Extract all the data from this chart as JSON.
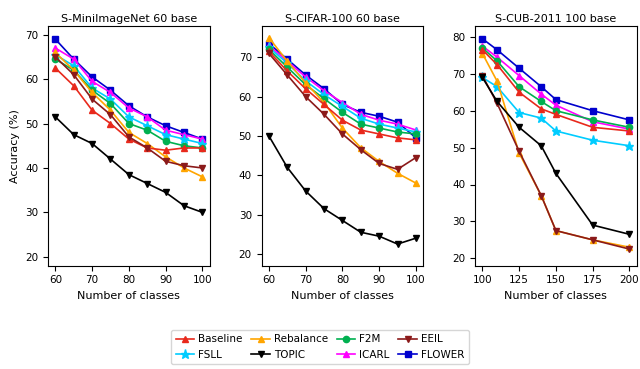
{
  "plot1": {
    "title": "S-MiniImageNet 60 base",
    "x": [
      60,
      65,
      70,
      75,
      80,
      85,
      90,
      95,
      100
    ],
    "xticks": [
      60,
      70,
      80,
      90,
      100
    ],
    "xlabel": "Number of classes",
    "ylabel": "Accuracy (%)",
    "ylim": [
      18,
      72
    ],
    "yticks": [
      20,
      30,
      40,
      50,
      60,
      70
    ],
    "series": {
      "Baseline": [
        62.5,
        58.5,
        53.0,
        50.0,
        46.5,
        44.5,
        44.0,
        44.5,
        44.5
      ],
      "F2M": [
        64.5,
        62.0,
        57.5,
        54.5,
        50.0,
        48.5,
        46.0,
        45.0,
        44.5
      ],
      "FSLL": [
        65.5,
        63.0,
        58.0,
        55.5,
        51.5,
        49.5,
        47.5,
        46.5,
        45.5
      ],
      "ICARL": [
        67.0,
        64.5,
        59.5,
        57.0,
        53.5,
        51.5,
        48.5,
        47.5,
        46.5
      ],
      "Rebalance": [
        66.0,
        62.0,
        57.0,
        53.0,
        48.0,
        45.5,
        42.5,
        40.0,
        38.0
      ],
      "EEIL": [
        65.0,
        61.0,
        55.5,
        52.0,
        47.0,
        44.5,
        41.5,
        40.5,
        40.0
      ],
      "TOPIC": [
        51.5,
        47.5,
        45.5,
        42.0,
        38.5,
        36.5,
        34.5,
        31.5,
        30.0
      ],
      "FLOWER": [
        69.0,
        64.5,
        60.5,
        57.5,
        54.0,
        51.5,
        49.5,
        48.0,
        46.5
      ]
    }
  },
  "plot2": {
    "title": "S-CIFAR-100 60 base",
    "x": [
      60,
      65,
      70,
      75,
      80,
      85,
      90,
      95,
      100
    ],
    "xticks": [
      60,
      70,
      80,
      90,
      100
    ],
    "xlabel": "Number of classes",
    "ylabel": "",
    "ylim": [
      17,
      78
    ],
    "yticks": [
      20,
      30,
      40,
      50,
      60,
      70
    ],
    "series": {
      "Baseline": [
        71.5,
        66.5,
        62.0,
        58.0,
        54.0,
        51.5,
        50.5,
        49.5,
        49.0
      ],
      "F2M": [
        72.0,
        67.5,
        63.0,
        59.5,
        56.0,
        53.0,
        52.0,
        51.0,
        50.5
      ],
      "FSLL": [
        72.5,
        68.5,
        64.0,
        60.5,
        57.5,
        54.5,
        53.0,
        52.0,
        51.0
      ],
      "ICARL": [
        73.0,
        69.0,
        65.0,
        61.5,
        58.5,
        55.5,
        54.0,
        53.0,
        51.5
      ],
      "Rebalance": [
        75.0,
        69.0,
        63.5,
        58.5,
        52.0,
        47.0,
        43.5,
        40.5,
        38.0
      ],
      "EEIL": [
        71.0,
        65.5,
        60.0,
        55.5,
        50.5,
        46.5,
        43.0,
        41.5,
        44.5
      ],
      "TOPIC": [
        50.0,
        42.0,
        36.0,
        31.5,
        28.5,
        25.5,
        24.5,
        22.5,
        24.0
      ],
      "FLOWER": [
        73.5,
        69.5,
        65.5,
        62.0,
        58.0,
        56.0,
        55.0,
        53.5,
        49.5
      ]
    }
  },
  "plot3": {
    "title": "S-CUB-2011 100 base",
    "x": [
      100,
      110,
      125,
      140,
      150,
      175,
      200
    ],
    "xticks": [
      100,
      125,
      150,
      175,
      200
    ],
    "xlabel": "Number of classes",
    "ylabel": "",
    "ylim": [
      18,
      83
    ],
    "yticks": [
      20,
      30,
      40,
      50,
      60,
      70,
      80
    ],
    "series": {
      "Baseline": [
        76.5,
        72.5,
        65.0,
        60.5,
        59.0,
        55.5,
        54.5
      ],
      "F2M": [
        77.0,
        73.5,
        66.5,
        62.5,
        60.0,
        57.5,
        55.5
      ],
      "FSLL": [
        69.0,
        66.5,
        59.5,
        58.0,
        54.5,
        52.0,
        50.5
      ],
      "ICARL": [
        77.5,
        74.5,
        69.5,
        64.5,
        61.5,
        57.0,
        55.0
      ],
      "Rebalance": [
        75.5,
        68.0,
        48.5,
        37.0,
        27.5,
        25.0,
        23.0
      ],
      "EEIL": [
        69.5,
        62.0,
        49.0,
        37.0,
        27.5,
        25.0,
        22.5
      ],
      "TOPIC": [
        69.0,
        62.5,
        55.5,
        50.5,
        43.0,
        29.0,
        26.5
      ],
      "FLOWER": [
        79.5,
        76.5,
        71.5,
        66.5,
        63.0,
        60.0,
        57.5
      ]
    }
  },
  "series_styles": {
    "Baseline": {
      "color": "#e8291c",
      "marker": "^",
      "ms": 4.5
    },
    "F2M": {
      "color": "#00b050",
      "marker": "o",
      "ms": 4.5
    },
    "FSLL": {
      "color": "#00ccff",
      "marker": "*",
      "ms": 6.5
    },
    "ICARL": {
      "color": "#ff00ff",
      "marker": "^",
      "ms": 4.5
    },
    "Rebalance": {
      "color": "#ffa500",
      "marker": "^",
      "ms": 4.5
    },
    "EEIL": {
      "color": "#8b1a1a",
      "marker": "v",
      "ms": 4.5
    },
    "TOPIC": {
      "color": "#000000",
      "marker": "v",
      "ms": 4.5
    },
    "FLOWER": {
      "color": "#0000cd",
      "marker": "s",
      "ms": 4.5
    }
  },
  "legend_order": [
    "Baseline",
    "FSLL",
    "Rebalance",
    "TOPIC",
    "F2M",
    "ICARL",
    "EEIL",
    "FLOWER"
  ],
  "fig_width": 6.4,
  "fig_height": 3.69,
  "dpi": 100
}
